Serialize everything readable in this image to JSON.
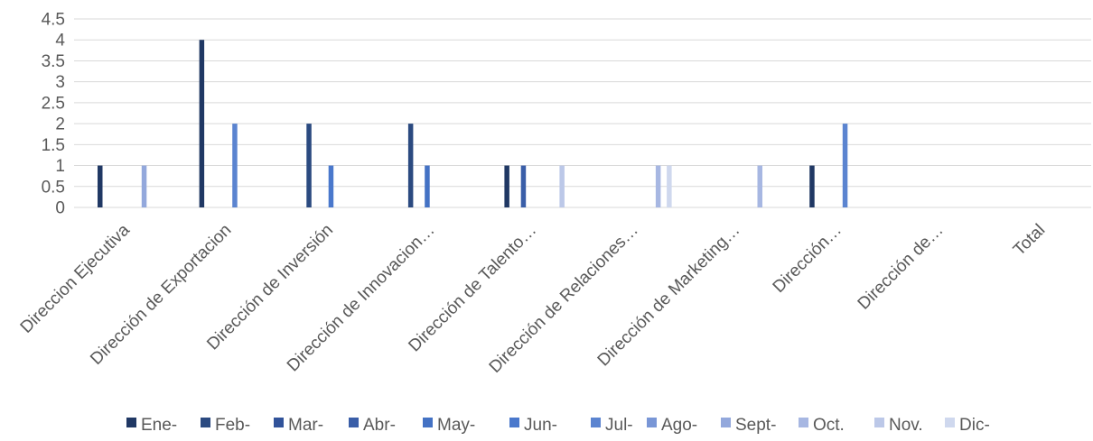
{
  "chart_data": {
    "type": "bar",
    "title": "",
    "xlabel": "",
    "ylabel": "",
    "ylim": [
      0,
      4.5
    ],
    "yticks": [
      "0",
      "0.5",
      "1",
      "1.5",
      "2",
      "2.5",
      "3",
      "3.5",
      "4",
      "4.5"
    ],
    "grid": true,
    "legend_position": "bottom",
    "categories": [
      "Direccion Ejecutiva",
      "Dirección de Exportacion",
      "Dirección de Inversión",
      "Dirección de Innovacion…",
      "Dirección de Talento…",
      "Dirección de Relaciones…",
      "Dirección de Marketing…",
      "Dirección…",
      "Dirección de…",
      "Total"
    ],
    "series": [
      {
        "name": "Ene-",
        "color": "#203864",
        "values": [
          1,
          4,
          0,
          0,
          1,
          0,
          0,
          1,
          0,
          0
        ]
      },
      {
        "name": "Feb-",
        "color": "#2b4a80",
        "values": [
          0,
          0,
          2,
          2,
          0,
          0,
          0,
          0,
          0,
          0
        ]
      },
      {
        "name": "Mar-",
        "color": "#31539a",
        "values": [
          0,
          0,
          0,
          0,
          0,
          0,
          0,
          0,
          0,
          0
        ]
      },
      {
        "name": "Abr-",
        "color": "#3a5ea8",
        "values": [
          0,
          0,
          0,
          0,
          1,
          0,
          0,
          0,
          0,
          0
        ]
      },
      {
        "name": "May-",
        "color": "#4472c4",
        "values": [
          0,
          0,
          0,
          1,
          0,
          0,
          0,
          0,
          0,
          0
        ]
      },
      {
        "name": "Jun-",
        "color": "#4a78cc",
        "values": [
          0,
          0,
          1,
          0,
          0,
          0,
          0,
          0,
          0,
          0
        ]
      },
      {
        "name": "Jul-",
        "color": "#5b84d0",
        "values": [
          0,
          2,
          0,
          0,
          0,
          0,
          0,
          2,
          0,
          0
        ]
      },
      {
        "name": "Ago-",
        "color": "#7996d6",
        "values": [
          0,
          0,
          0,
          0,
          0,
          0,
          0,
          0,
          0,
          0
        ]
      },
      {
        "name": "Sept-",
        "color": "#93a8dc",
        "values": [
          1,
          0,
          0,
          0,
          0,
          0,
          0,
          0,
          0,
          0
        ]
      },
      {
        "name": "Oct.",
        "color": "#a7b7e2",
        "values": [
          0,
          0,
          0,
          0,
          0,
          1,
          1,
          0,
          0,
          0
        ]
      },
      {
        "name": "Nov.",
        "color": "#bcc8e8",
        "values": [
          0,
          0,
          0,
          0,
          1,
          0,
          0,
          0,
          0,
          0
        ]
      },
      {
        "name": "Dic-",
        "color": "#cfd8ee",
        "values": [
          0,
          0,
          0,
          0,
          0,
          1,
          0,
          0,
          0,
          0
        ]
      }
    ]
  }
}
